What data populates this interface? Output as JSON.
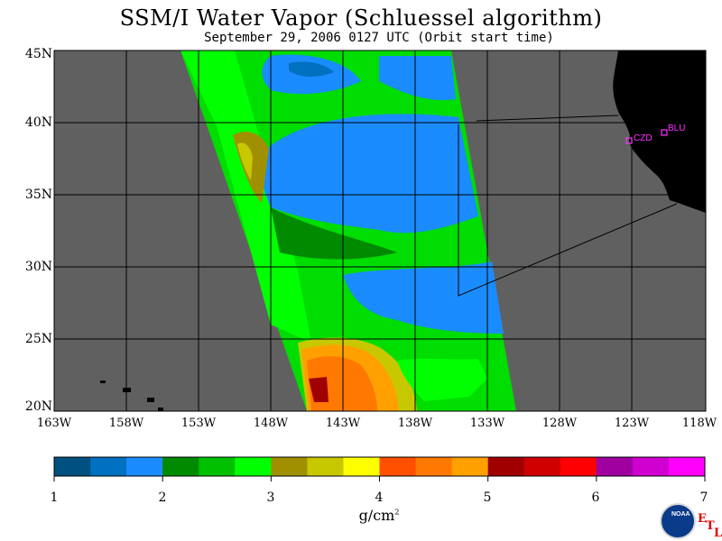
{
  "title": "SSM/I Water Vapor (Schluessel algorithm)",
  "subtitle": "September 29, 2006  0127 UTC  (Orbit start time)",
  "lat_labels": [
    "45N",
    "40N",
    "35N",
    "30N",
    "25N",
    "20N"
  ],
  "lon_labels": [
    "163W",
    "158W",
    "153W",
    "148W",
    "143W",
    "138W",
    "133W",
    "128W",
    "123W",
    "118W"
  ],
  "stations": [
    {
      "label": "BLU"
    },
    {
      "label": "CZD"
    }
  ],
  "colorbar": {
    "ticks": [
      "1",
      "2",
      "3",
      "4",
      "5",
      "6",
      "7"
    ],
    "units": "g/cm",
    "units_exp": "2",
    "colors": [
      "#005080",
      "#0070c0",
      "#1a8cff",
      "#008a00",
      "#00c000",
      "#00ff00",
      "#a09000",
      "#c8c800",
      "#ffff00",
      "#ff5000",
      "#ff7800",
      "#ffa000",
      "#a00000",
      "#d00000",
      "#ff0000",
      "#a000a0",
      "#d000d0",
      "#ff00ff"
    ]
  },
  "map_colors": {
    "land": "#000000",
    "no_data": "#606060",
    "grid": "#000000",
    "station": "#ff33ff"
  },
  "logos": {
    "noaa": "NOAA",
    "etl_letters": [
      "E",
      "T",
      "L"
    ]
  },
  "icons": [
    "noaa-logo-icon"
  ]
}
